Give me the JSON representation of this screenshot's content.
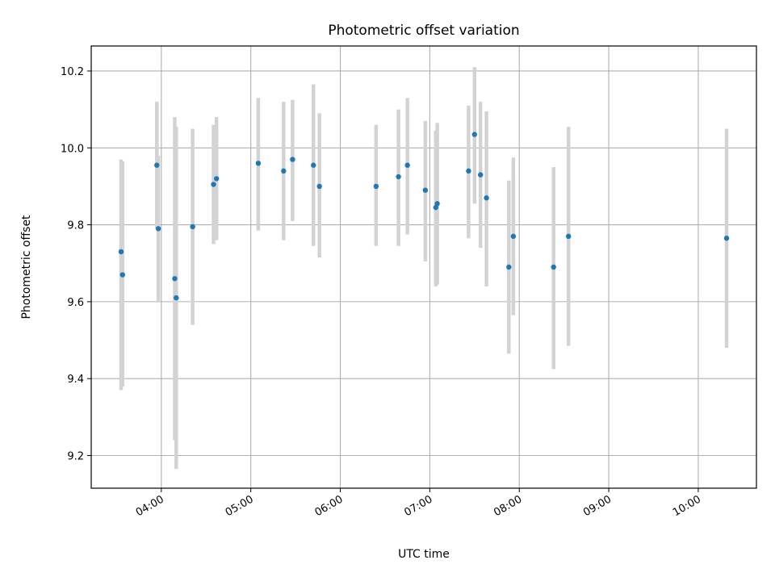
{
  "chart_data": {
    "type": "scatter",
    "title": "Photometric offset variation",
    "xlabel": "UTC time",
    "ylabel": "Photometric offset",
    "xlim": [
      "03:13",
      "10:39"
    ],
    "ylim": [
      9.115,
      10.265
    ],
    "x_ticks": [
      "04:00",
      "05:00",
      "06:00",
      "07:00",
      "08:00",
      "09:00",
      "10:00"
    ],
    "y_ticks": [
      9.2,
      9.4,
      9.6,
      9.8,
      10.0,
      10.2
    ],
    "y_tick_labels": [
      "9.2",
      "9.4",
      "9.6",
      "9.8",
      "10.0",
      "10.2"
    ],
    "grid": true,
    "legend": "none",
    "colors": {
      "point": "#1f77b4",
      "error_bar": "#d3d3d3",
      "grid": "#b0b0b0"
    },
    "points": [
      {
        "x": "03:33",
        "y": 9.73,
        "err_low": 9.37,
        "err_high": 9.97
      },
      {
        "x": "03:34",
        "y": 9.67,
        "err_low": 9.38,
        "err_high": 9.965
      },
      {
        "x": "03:57",
        "y": 9.955,
        "err_low": 9.79,
        "err_high": 10.12
      },
      {
        "x": "03:58",
        "y": 9.79,
        "err_low": 9.6,
        "err_high": 9.98
      },
      {
        "x": "04:09",
        "y": 9.66,
        "err_low": 9.24,
        "err_high": 10.08
      },
      {
        "x": "04:10",
        "y": 9.61,
        "err_low": 9.165,
        "err_high": 10.055
      },
      {
        "x": "04:21",
        "y": 9.795,
        "err_low": 9.54,
        "err_high": 10.05
      },
      {
        "x": "04:35",
        "y": 9.905,
        "err_low": 9.75,
        "err_high": 10.06
      },
      {
        "x": "04:37",
        "y": 9.92,
        "err_low": 9.76,
        "err_high": 10.08
      },
      {
        "x": "05:05",
        "y": 9.96,
        "err_low": 9.785,
        "err_high": 10.13
      },
      {
        "x": "05:22",
        "y": 9.94,
        "err_low": 9.76,
        "err_high": 10.12
      },
      {
        "x": "05:28",
        "y": 9.97,
        "err_low": 9.81,
        "err_high": 10.125
      },
      {
        "x": "05:42",
        "y": 9.955,
        "err_low": 9.745,
        "err_high": 10.165
      },
      {
        "x": "05:46",
        "y": 9.9,
        "err_low": 9.715,
        "err_high": 10.09
      },
      {
        "x": "06:24",
        "y": 9.9,
        "err_low": 9.745,
        "err_high": 10.06
      },
      {
        "x": "06:39",
        "y": 9.925,
        "err_low": 9.745,
        "err_high": 10.1
      },
      {
        "x": "06:45",
        "y": 9.955,
        "err_low": 9.775,
        "err_high": 10.13
      },
      {
        "x": "06:57",
        "y": 9.89,
        "err_low": 9.705,
        "err_high": 10.07
      },
      {
        "x": "07:04",
        "y": 9.845,
        "err_low": 9.64,
        "err_high": 10.045
      },
      {
        "x": "07:05",
        "y": 9.855,
        "err_low": 9.645,
        "err_high": 10.065
      },
      {
        "x": "07:26",
        "y": 9.94,
        "err_low": 9.765,
        "err_high": 10.11
      },
      {
        "x": "07:30",
        "y": 10.035,
        "err_low": 9.855,
        "err_high": 10.21
      },
      {
        "x": "07:34",
        "y": 9.93,
        "err_low": 9.74,
        "err_high": 10.12
      },
      {
        "x": "07:38",
        "y": 9.87,
        "err_low": 9.64,
        "err_high": 10.095
      },
      {
        "x": "07:53",
        "y": 9.69,
        "err_low": 9.465,
        "err_high": 9.915
      },
      {
        "x": "07:56",
        "y": 9.77,
        "err_low": 9.565,
        "err_high": 9.975
      },
      {
        "x": "08:23",
        "y": 9.69,
        "err_low": 9.425,
        "err_high": 9.95
      },
      {
        "x": "08:33",
        "y": 9.77,
        "err_low": 9.485,
        "err_high": 10.055
      },
      {
        "x": "10:19",
        "y": 9.765,
        "err_low": 9.48,
        "err_high": 10.05
      }
    ]
  }
}
